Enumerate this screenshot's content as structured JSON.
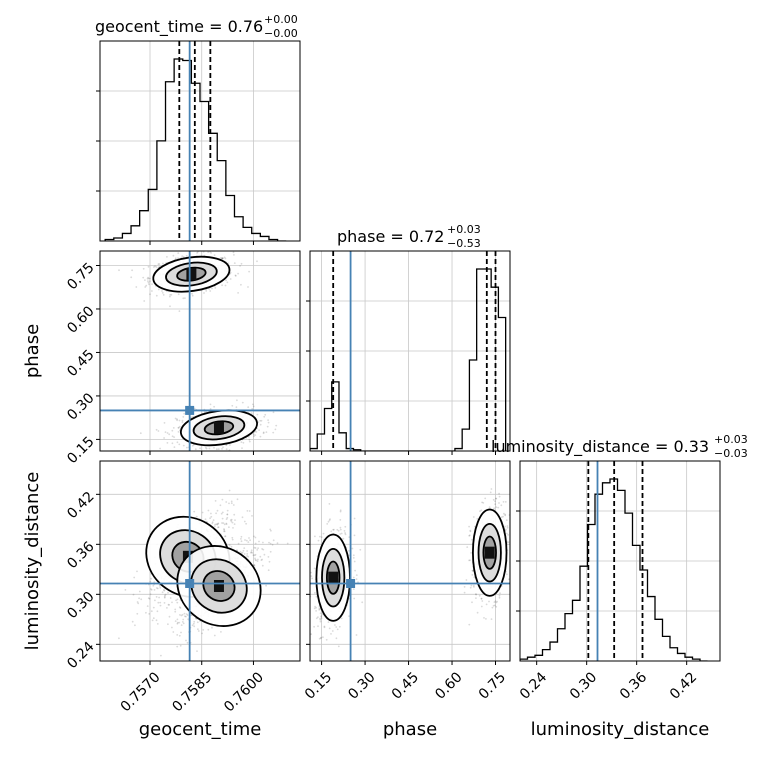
{
  "chart_data": {
    "type": "corner",
    "title": "",
    "parameters": [
      "geocent_time",
      "phase",
      "luminosity_distance"
    ],
    "truth": {
      "geocent_time": 0.75815,
      "phase": 0.25,
      "luminosity_distance": 0.313
    },
    "panel_titles": [
      {
        "param": "geocent_time",
        "main": "geocent_time = 0.76",
        "sup": "+0.00",
        "sub": "−0.00"
      },
      {
        "param": "phase",
        "main": "phase = 0.72",
        "sup": "+0.03",
        "sub": "−0.53"
      },
      {
        "param": "luminosity_distance",
        "main": "luminosity_distance = 0.33",
        "sup": "+0.03",
        "sub": "−0.03"
      }
    ],
    "axis_labels": {
      "geocent_time": "geocent_time",
      "phase": "phase",
      "luminosity_distance": "luminosity_distance"
    },
    "ticks": {
      "geocent_time": [
        "0.7570",
        "0.7585",
        "0.7600"
      ],
      "phase": [
        "0.15",
        "0.30",
        "0.45",
        "0.60",
        "0.75"
      ],
      "luminosity_distance": [
        "0.24",
        "0.30",
        "0.36",
        "0.42"
      ]
    },
    "tick_values": {
      "geocent_time": [
        0.757,
        0.7585,
        0.76
      ],
      "phase": [
        0.15,
        0.3,
        0.45,
        0.6,
        0.75
      ],
      "luminosity_distance": [
        0.24,
        0.3,
        0.36,
        0.42
      ]
    },
    "ranges": {
      "geocent_time": [
        0.75555,
        0.76135
      ],
      "phase": [
        0.11,
        0.8
      ],
      "luminosity_distance": [
        0.22,
        0.46
      ]
    },
    "histograms": {
      "geocent_time": {
        "edges": [
          0.7557,
          0.75595,
          0.7562,
          0.75645,
          0.7567,
          0.75695,
          0.7572,
          0.75745,
          0.7577,
          0.75795,
          0.7582,
          0.75845,
          0.7587,
          0.75895,
          0.7592,
          0.75945,
          0.7597,
          0.75995,
          0.7602,
          0.76045,
          0.7607,
          0.76095
        ],
        "counts": [
          1,
          2,
          5,
          10,
          20,
          34,
          66,
          105,
          120,
          119,
          104,
          92,
          71,
          53,
          30,
          16,
          9,
          5,
          3,
          1,
          0
        ]
      },
      "phase": {
        "edges": [
          0.11,
          0.135,
          0.16,
          0.185,
          0.21,
          0.235,
          0.26,
          0.285,
          0.31,
          0.335,
          0.36,
          0.385,
          0.41,
          0.435,
          0.46,
          0.485,
          0.51,
          0.535,
          0.56,
          0.585,
          0.61,
          0.635,
          0.66,
          0.685,
          0.71,
          0.735,
          0.76,
          0.785
        ],
        "counts": [
          2,
          14,
          35,
          57,
          15,
          2,
          1,
          0,
          0,
          0,
          0,
          0,
          0,
          0,
          0,
          0,
          0,
          0,
          0,
          0,
          2,
          18,
          75,
          150,
          150,
          135,
          110
        ]
      },
      "luminosity_distance": {
        "edges": [
          0.22,
          0.229,
          0.238,
          0.247,
          0.256,
          0.265,
          0.274,
          0.283,
          0.292,
          0.301,
          0.31,
          0.319,
          0.328,
          0.337,
          0.346,
          0.355,
          0.364,
          0.373,
          0.382,
          0.391,
          0.4,
          0.409,
          0.418,
          0.427,
          0.436,
          0.445
        ],
        "counts": [
          1,
          2,
          3,
          6,
          10,
          17,
          25,
          32,
          50,
          72,
          88,
          94,
          96,
          90,
          78,
          61,
          48,
          34,
          22,
          13,
          7,
          4,
          2,
          1,
          0
        ]
      }
    },
    "quantile_lines": {
      "geocent_time": [
        0.75785,
        0.7583,
        0.75875
      ],
      "phase": [
        0.19,
        0.72,
        0.75
      ],
      "luminosity_distance": [
        0.302,
        0.333,
        0.367
      ]
    },
    "modes": {
      "phase_vs_geocent_time": [
        {
          "x": 0.7582,
          "y": 0.72
        },
        {
          "x": 0.759,
          "y": 0.19
        }
      ],
      "luminosity_distance_vs_geocent_time": [
        {
          "x": 0.7581,
          "y": 0.345
        },
        {
          "x": 0.759,
          "y": 0.31
        }
      ],
      "luminosity_distance_vs_phase": [
        {
          "x": 0.19,
          "y": 0.32
        },
        {
          "x": 0.73,
          "y": 0.35
        }
      ]
    }
  }
}
